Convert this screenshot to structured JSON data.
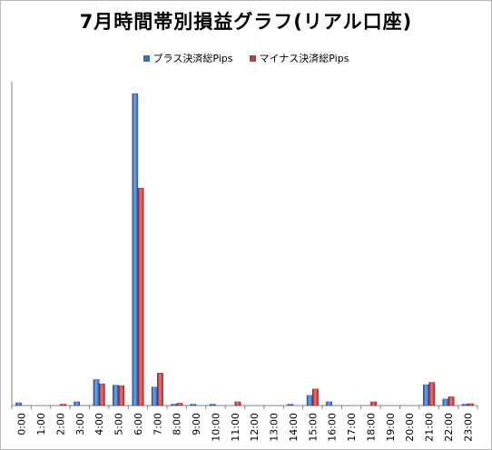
{
  "chart_data": {
    "type": "bar",
    "title": "7月時間帯別損益グラフ(リアル口座)",
    "categories": [
      "0:00",
      "1:00",
      "2:00",
      "3:00",
      "4:00",
      "5:00",
      "6:00",
      "7:00",
      "8:00",
      "9:00",
      "10:00",
      "11:00",
      "12:00",
      "13:00",
      "14:00",
      "15:00",
      "16:00",
      "17:00",
      "18:00",
      "19:00",
      "20:00",
      "21:00",
      "22:00",
      "23:00"
    ],
    "series": [
      {
        "name": "プラス決済総Pips",
        "color": "#3a6cc4",
        "values": [
          6,
          0,
          0,
          8,
          56,
          44,
          674,
          40,
          2,
          3,
          2,
          0,
          0,
          0,
          2,
          22,
          8,
          0,
          0,
          0,
          0,
          45,
          14,
          2
        ]
      },
      {
        "name": "マイナス決済総Pips",
        "color": "#c0393b",
        "values": [
          0,
          0,
          3,
          0,
          47,
          43,
          470,
          70,
          5,
          0,
          0,
          8,
          0,
          0,
          0,
          36,
          0,
          0,
          8,
          0,
          0,
          50,
          19,
          4
        ]
      }
    ],
    "ylim": [
      0,
      700
    ],
    "grid": false,
    "legend": "top-center"
  }
}
